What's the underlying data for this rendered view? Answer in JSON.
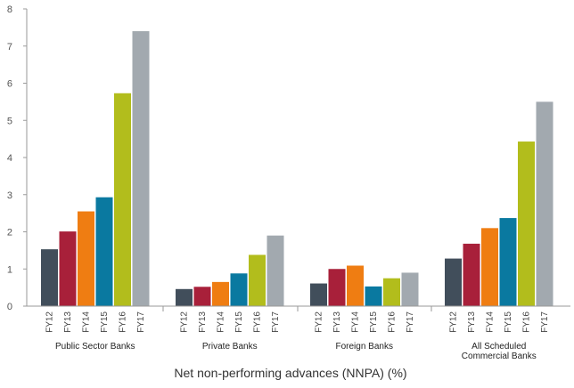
{
  "chart_data": {
    "type": "bar",
    "title": "",
    "xlabel": "Net non-performing advances (NNPA) (%)",
    "ylabel": "",
    "ylim": [
      0,
      8
    ],
    "yticks": [
      0,
      1,
      2,
      3,
      4,
      5,
      6,
      7,
      8
    ],
    "grid": false,
    "groups": [
      {
        "name": "Public Sector Banks",
        "name_lines": [
          "Public Sector Banks"
        ]
      },
      {
        "name": "Private Banks",
        "name_lines": [
          "Private Banks"
        ]
      },
      {
        "name": "Foreign Banks",
        "name_lines": [
          "Foreign Banks"
        ]
      },
      {
        "name": "All Scheduled Commercial Banks",
        "name_lines": [
          "All Scheduled",
          "Commercial Banks"
        ]
      }
    ],
    "series": [
      {
        "name": "FY12",
        "color": "#414e5b",
        "values": [
          1.53,
          0.46,
          0.61,
          1.28
        ]
      },
      {
        "name": "FY13",
        "color": "#a8203a",
        "values": [
          2.01,
          0.52,
          1.0,
          1.68
        ]
      },
      {
        "name": "FY14",
        "color": "#ef7d12",
        "values": [
          2.55,
          0.65,
          1.09,
          2.1
        ]
      },
      {
        "name": "FY15",
        "color": "#0a79a0",
        "values": [
          2.93,
          0.88,
          0.53,
          2.37
        ]
      },
      {
        "name": "FY16",
        "color": "#b2bd1c",
        "values": [
          5.73,
          1.38,
          0.75,
          4.43
        ]
      },
      {
        "name": "FY17",
        "color": "#a2a9af",
        "values": [
          7.4,
          1.9,
          0.9,
          5.5
        ]
      }
    ]
  }
}
